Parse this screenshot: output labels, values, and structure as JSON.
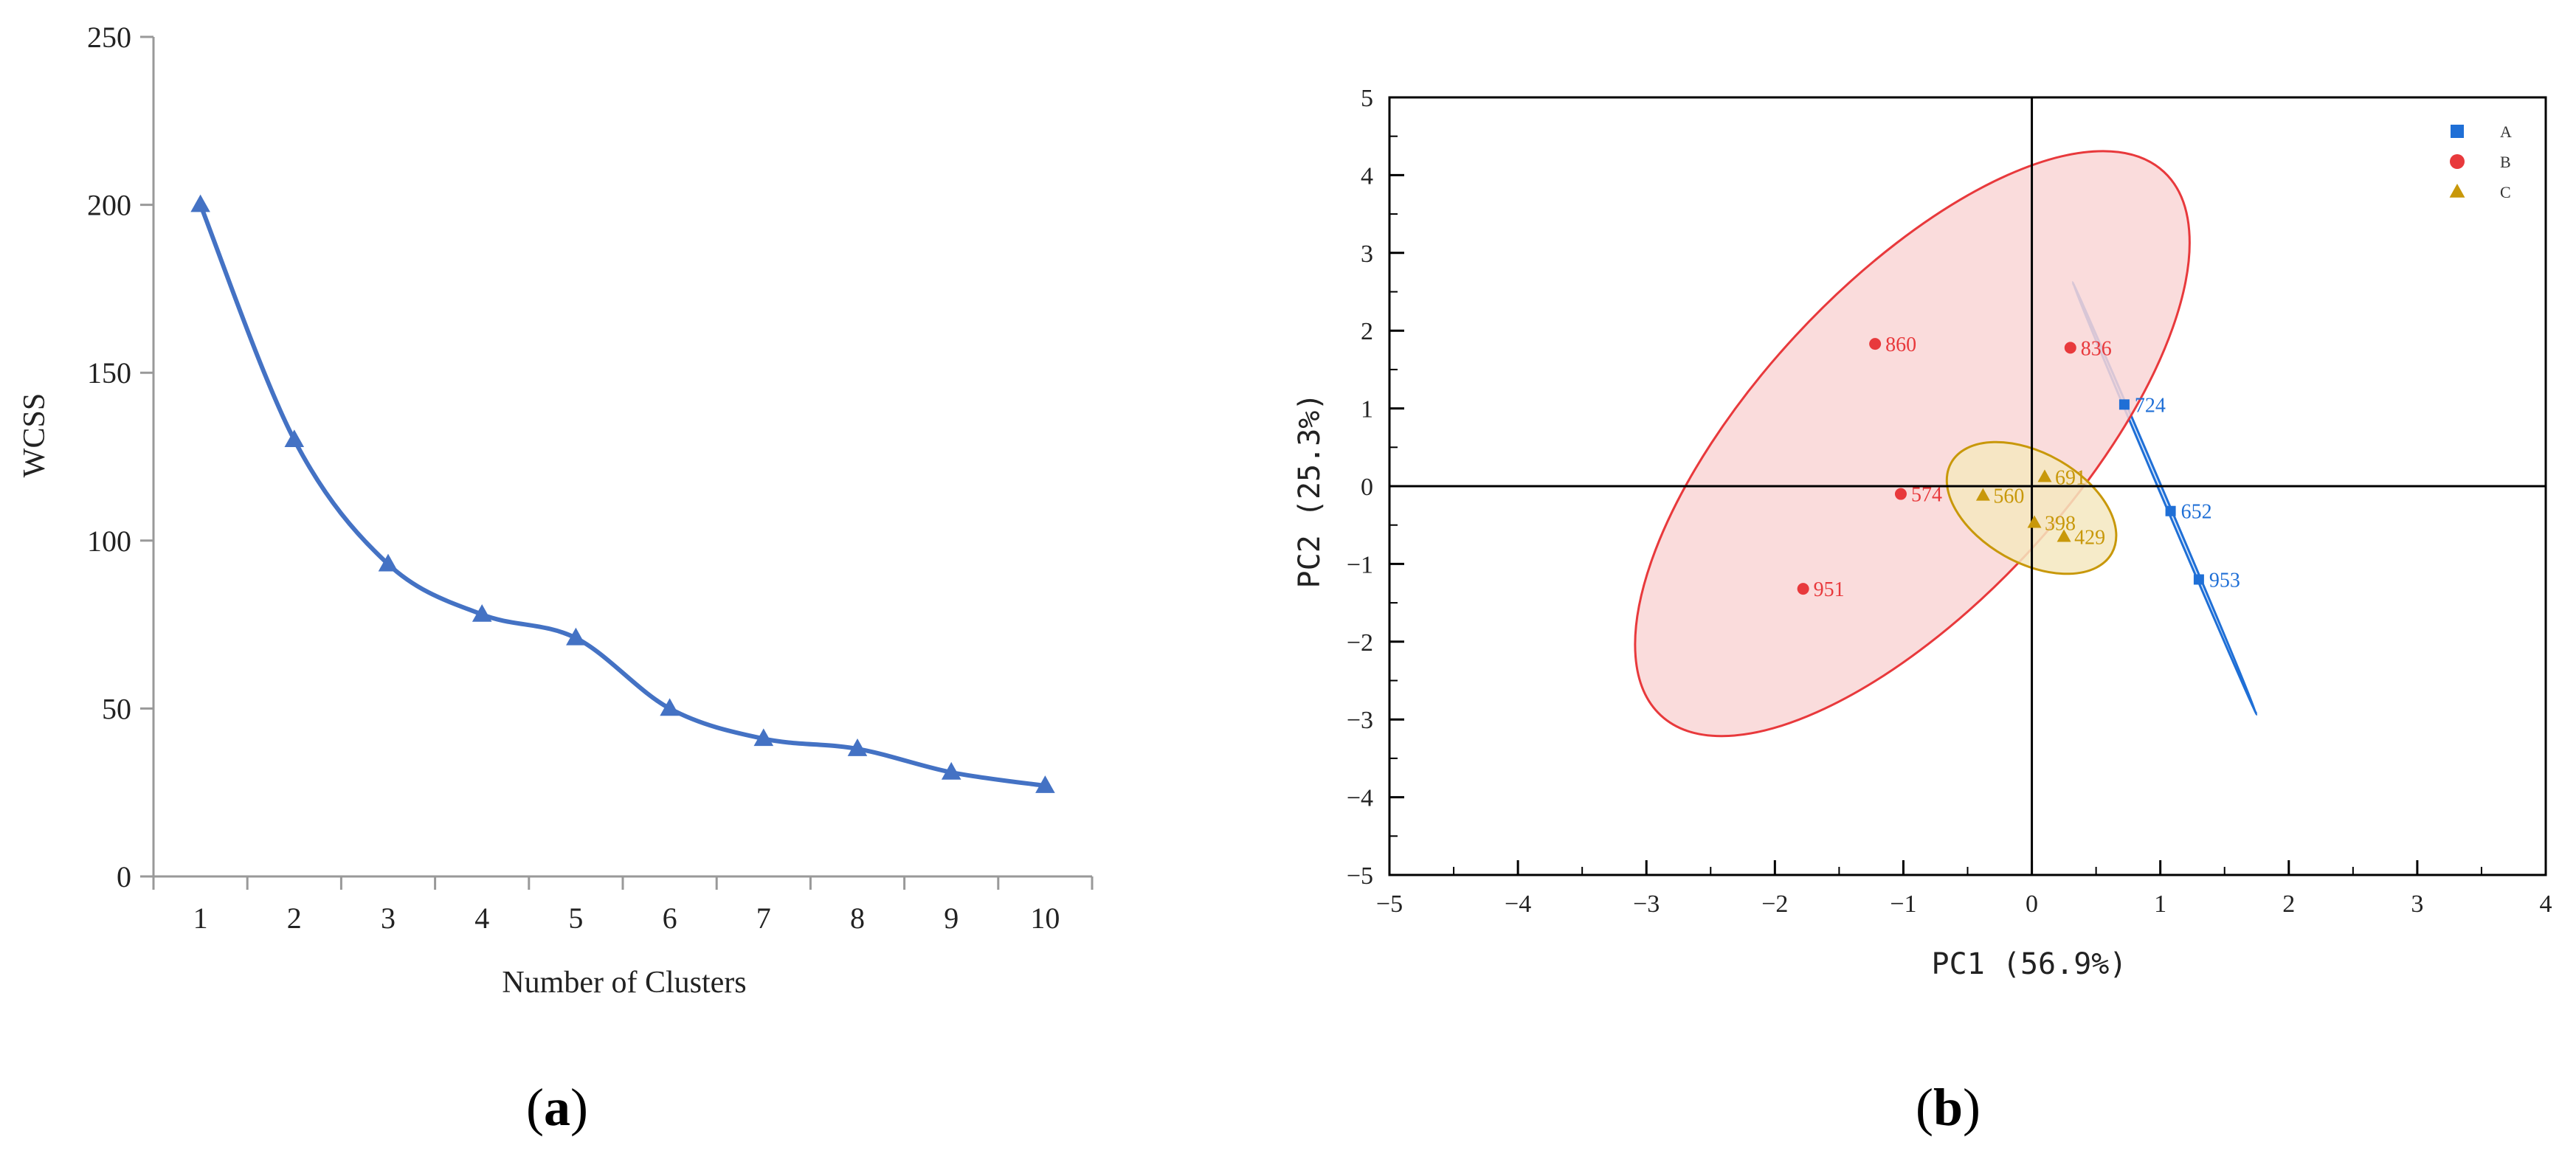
{
  "panels": {
    "a": {
      "label_prefix": "(",
      "label_letter": "a",
      "label_suffix": ")"
    },
    "b": {
      "label_prefix": "(",
      "label_letter": "b",
      "label_suffix": ")"
    }
  },
  "chart_data": [
    {
      "type": "line",
      "title": "",
      "xlabel": "Number of Clusters",
      "ylabel": "WCSS",
      "x": [
        1,
        2,
        3,
        4,
        5,
        6,
        7,
        8,
        9,
        10
      ],
      "series": [
        {
          "values": [
            200,
            130,
            93,
            78,
            71,
            50,
            41,
            38,
            31,
            27
          ]
        }
      ],
      "xticks": [
        1,
        2,
        3,
        4,
        5,
        6,
        7,
        8,
        9,
        10
      ],
      "yticks": [
        0,
        50,
        100,
        150,
        200,
        250
      ],
      "ylim": [
        0,
        250
      ],
      "marker": "triangle",
      "smooth": true,
      "grid": false,
      "colors": {
        "line": "#4472C4"
      }
    },
    {
      "type": "scatter",
      "title": "",
      "xlabel": "PC1 (56.9%)",
      "ylabel": "PC2 (25.3%)",
      "xlim": [
        -5,
        4
      ],
      "ylim": [
        -5,
        5
      ],
      "xticks": [
        -5,
        -4,
        -3,
        -2,
        -1,
        0,
        1,
        2,
        3,
        4
      ],
      "yticks": [
        -5,
        -4,
        -3,
        -2,
        -1,
        0,
        1,
        2,
        3,
        4,
        5
      ],
      "grid": false,
      "legend_position": "top-right",
      "series": [
        {
          "name": "A",
          "marker": "square",
          "color": "#1F6FD6",
          "fill": "#CCE0FA",
          "points": [
            {
              "x": 0.72,
              "y": 1.05,
              "label": "724"
            },
            {
              "x": 1.08,
              "y": -0.32,
              "label": "652"
            },
            {
              "x": 1.3,
              "y": -1.2,
              "label": "953"
            }
          ]
        },
        {
          "name": "B",
          "marker": "circle",
          "color": "#E8393C",
          "fill": "#F9D6D6",
          "points": [
            {
              "x": -1.22,
              "y": 1.83,
              "label": "860"
            },
            {
              "x": 0.3,
              "y": 1.78,
              "label": "836"
            },
            {
              "x": -1.02,
              "y": -0.1,
              "label": "574"
            },
            {
              "x": -1.78,
              "y": -1.32,
              "label": "951"
            }
          ]
        },
        {
          "name": "C",
          "marker": "triangle",
          "color": "#C8980A",
          "fill": "#F4E8C0",
          "points": [
            {
              "x": 0.1,
              "y": 0.12,
              "label": "691"
            },
            {
              "x": -0.38,
              "y": -0.12,
              "label": "560"
            },
            {
              "x": 0.02,
              "y": -0.47,
              "label": "398"
            },
            {
              "x": 0.25,
              "y": -0.65,
              "label": "429"
            }
          ]
        }
      ],
      "confidence_ellipses": true
    }
  ]
}
